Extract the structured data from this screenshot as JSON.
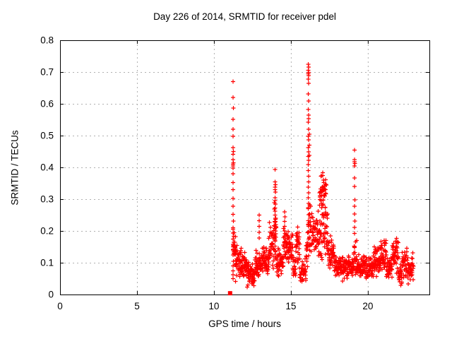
{
  "chart_data": {
    "type": "scatter",
    "title": "Day 226 of 2014, SRMTID for receiver pdel",
    "xlabel": "GPS time / hours",
    "ylabel": "SRMTID / TECUs",
    "xlim": [
      0,
      24
    ],
    "ylim": [
      0,
      0.8
    ],
    "xticks": {
      "values": [
        0,
        5,
        10,
        15,
        20
      ],
      "labels": [
        "0",
        "5",
        "10",
        "15",
        "20"
      ]
    },
    "yticks": {
      "values": [
        0,
        0.1,
        0.2,
        0.3,
        0.4,
        0.5,
        0.6,
        0.7,
        0.8
      ],
      "labels": [
        "0",
        "0.1",
        "0.2",
        "0.3",
        "0.4",
        "0.5",
        "0.6",
        "0.7",
        "0.8"
      ]
    },
    "grid": true,
    "legend": "none",
    "marker": "plus",
    "marker_size": 7,
    "colors": {
      "marker": "#ff0000",
      "grid": "#b0b0b0",
      "frame": "#000000",
      "background": "#ffffff",
      "text": "#000000"
    },
    "data_extent_hours": [
      11.05,
      23.0
    ],
    "feature_points": [
      [
        11.25,
        0.67
      ],
      [
        11.25,
        0.62
      ],
      [
        11.26,
        0.587
      ],
      [
        11.25,
        0.551
      ],
      [
        11.24,
        0.52
      ],
      [
        11.25,
        0.498
      ],
      [
        11.25,
        0.462
      ],
      [
        11.26,
        0.45
      ],
      [
        11.24,
        0.441
      ],
      [
        11.25,
        0.424
      ],
      [
        11.26,
        0.415
      ],
      [
        11.24,
        0.41
      ],
      [
        11.25,
        0.405
      ],
      [
        11.25,
        0.398
      ],
      [
        11.25,
        0.38
      ],
      [
        11.24,
        0.352
      ],
      [
        11.25,
        0.33
      ],
      [
        11.25,
        0.302
      ],
      [
        11.24,
        0.278
      ],
      [
        11.25,
        0.252
      ],
      [
        11.26,
        0.231
      ],
      [
        11.25,
        0.21
      ],
      [
        11.24,
        0.193
      ],
      [
        11.25,
        0.175
      ],
      [
        11.25,
        0.158
      ],
      [
        11.24,
        0.14
      ],
      [
        11.25,
        0.124
      ],
      [
        11.26,
        0.105
      ],
      [
        11.25,
        0.09
      ],
      [
        11.24,
        0.075
      ],
      [
        11.25,
        0.062
      ],
      [
        11.25,
        0.05
      ],
      [
        16.14,
        0.724
      ],
      [
        16.15,
        0.716
      ],
      [
        16.14,
        0.706
      ],
      [
        16.16,
        0.699
      ],
      [
        16.14,
        0.694
      ],
      [
        16.15,
        0.689
      ],
      [
        16.14,
        0.678
      ],
      [
        16.15,
        0.664
      ],
      [
        16.14,
        0.631
      ],
      [
        16.15,
        0.609
      ],
      [
        16.14,
        0.582
      ],
      [
        16.15,
        0.564
      ],
      [
        16.16,
        0.553
      ],
      [
        16.14,
        0.542
      ],
      [
        16.15,
        0.52
      ],
      [
        16.14,
        0.498
      ],
      [
        16.16,
        0.487
      ],
      [
        16.14,
        0.462
      ],
      [
        16.15,
        0.449
      ],
      [
        16.14,
        0.435
      ],
      [
        16.16,
        0.422
      ],
      [
        16.14,
        0.409
      ],
      [
        16.19,
        0.505
      ],
      [
        16.2,
        0.47
      ],
      [
        16.19,
        0.438
      ],
      [
        16.14,
        0.39
      ],
      [
        16.15,
        0.372
      ],
      [
        16.16,
        0.355
      ],
      [
        16.14,
        0.338
      ],
      [
        16.15,
        0.32
      ],
      [
        16.14,
        0.305
      ],
      [
        16.16,
        0.287
      ],
      [
        16.14,
        0.27
      ],
      [
        16.15,
        0.251
      ],
      [
        16.14,
        0.232
      ],
      [
        16.16,
        0.214
      ],
      [
        16.15,
        0.197
      ],
      [
        13.98,
        0.393
      ],
      [
        13.98,
        0.355
      ],
      [
        13.99,
        0.346
      ],
      [
        13.97,
        0.338
      ],
      [
        13.98,
        0.33
      ],
      [
        13.99,
        0.322
      ],
      [
        13.98,
        0.304
      ],
      [
        13.97,
        0.296
      ],
      [
        13.99,
        0.285
      ],
      [
        13.98,
        0.272
      ],
      [
        13.98,
        0.262
      ],
      [
        13.97,
        0.25
      ],
      [
        13.99,
        0.24
      ],
      [
        13.98,
        0.228
      ],
      [
        13.98,
        0.215
      ],
      [
        13.99,
        0.2
      ],
      [
        13.97,
        0.185
      ],
      [
        13.98,
        0.168
      ],
      [
        13.98,
        0.152
      ],
      [
        13.99,
        0.135
      ],
      [
        13.98,
        0.12
      ],
      [
        19.13,
        0.455
      ],
      [
        19.14,
        0.425
      ],
      [
        19.13,
        0.418
      ],
      [
        19.15,
        0.412
      ],
      [
        19.14,
        0.405
      ],
      [
        19.13,
        0.367
      ],
      [
        19.14,
        0.34
      ],
      [
        19.15,
        0.298
      ],
      [
        19.13,
        0.278
      ],
      [
        19.14,
        0.253
      ],
      [
        19.15,
        0.231
      ],
      [
        19.14,
        0.211
      ],
      [
        19.13,
        0.192
      ],
      [
        14.6,
        0.26
      ],
      [
        14.61,
        0.245
      ],
      [
        14.59,
        0.23
      ],
      [
        14.6,
        0.215
      ],
      [
        14.6,
        0.2
      ],
      [
        12.94,
        0.25
      ],
      [
        12.95,
        0.232
      ],
      [
        12.94,
        0.214
      ],
      [
        12.95,
        0.196
      ],
      [
        12.94,
        0.178
      ]
    ],
    "square_points": [
      [
        11.05,
        0.004
      ]
    ],
    "band_segments": [
      [
        11.24,
        11.42,
        0.09,
        0.225,
        26
      ],
      [
        11.4,
        11.8,
        0.04,
        0.165,
        48
      ],
      [
        11.8,
        12.15,
        0.05,
        0.135,
        40
      ],
      [
        12.15,
        12.65,
        0.022,
        0.105,
        56
      ],
      [
        12.65,
        13.1,
        0.05,
        0.14,
        50
      ],
      [
        13.1,
        13.55,
        0.06,
        0.165,
        48
      ],
      [
        13.55,
        13.9,
        0.075,
        0.23,
        40
      ],
      [
        13.9,
        14.05,
        0.1,
        0.3,
        22
      ],
      [
        14.05,
        14.5,
        0.05,
        0.15,
        48
      ],
      [
        14.5,
        14.72,
        0.1,
        0.24,
        24
      ],
      [
        14.72,
        15.12,
        0.09,
        0.215,
        46
      ],
      [
        15.12,
        15.32,
        0.05,
        0.13,
        20
      ],
      [
        15.32,
        15.58,
        0.07,
        0.235,
        30
      ],
      [
        15.58,
        15.98,
        0.03,
        0.115,
        40
      ],
      [
        15.98,
        16.08,
        0.08,
        0.22,
        12
      ],
      [
        16.08,
        16.3,
        0.1,
        0.32,
        28
      ],
      [
        16.3,
        16.75,
        0.12,
        0.27,
        48
      ],
      [
        16.75,
        17.4,
        0.1,
        0.3,
        62
      ],
      [
        16.85,
        17.3,
        0.27,
        0.385,
        46
      ],
      [
        17.4,
        17.8,
        0.07,
        0.2,
        42
      ],
      [
        17.8,
        18.25,
        0.05,
        0.135,
        48
      ],
      [
        18.25,
        18.75,
        0.04,
        0.12,
        52
      ],
      [
        18.75,
        19.08,
        0.05,
        0.13,
        36
      ],
      [
        19.08,
        19.3,
        0.06,
        0.18,
        24
      ],
      [
        19.3,
        19.85,
        0.05,
        0.13,
        56
      ],
      [
        19.85,
        20.35,
        0.045,
        0.125,
        52
      ],
      [
        20.35,
        20.85,
        0.055,
        0.155,
        52
      ],
      [
        20.85,
        21.2,
        0.07,
        0.175,
        38
      ],
      [
        21.2,
        21.58,
        0.04,
        0.13,
        40
      ],
      [
        21.58,
        22.0,
        0.06,
        0.185,
        44
      ],
      [
        22.0,
        22.22,
        0.025,
        0.1,
        22
      ],
      [
        22.22,
        22.58,
        0.05,
        0.165,
        38
      ],
      [
        22.58,
        22.97,
        0.03,
        0.135,
        42
      ]
    ],
    "seed": 20140226
  }
}
